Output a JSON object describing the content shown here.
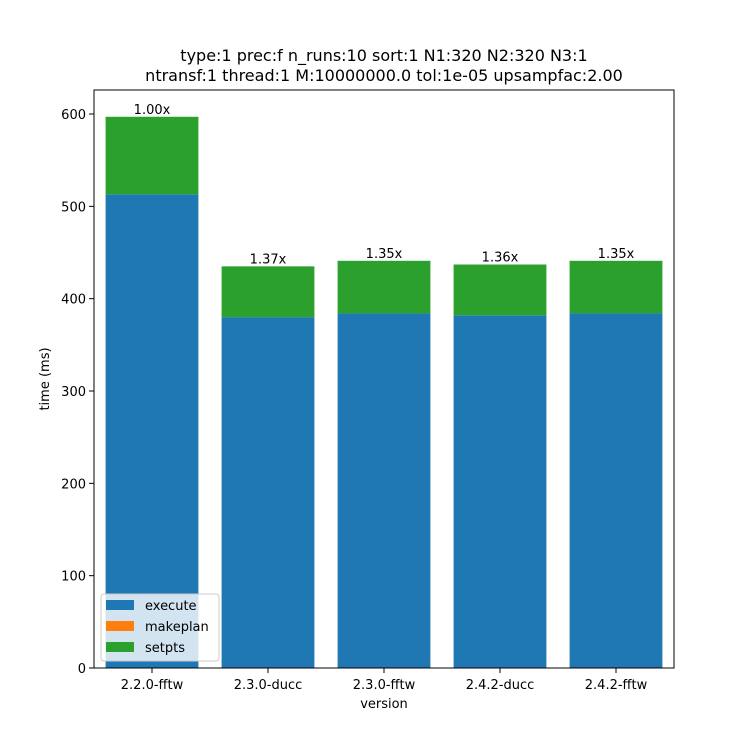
{
  "chart_data": {
    "type": "bar",
    "stacked": true,
    "title_line1": "type:1 prec:f n_runs:10 sort:1 N1:320 N2:320 N3:1",
    "title_line2": "ntransf:1 thread:1 M:10000000.0 tol:1e-05 upsampfac:2.00",
    "xlabel": "version",
    "ylabel": "time (ms)",
    "categories": [
      "2.2.0-fftw",
      "2.3.0-ducc",
      "2.3.0-fftw",
      "2.4.2-ducc",
      "2.4.2-fftw"
    ],
    "ylim": [
      0,
      626
    ],
    "yticks": [
      0,
      100,
      200,
      300,
      400,
      500,
      600
    ],
    "series": [
      {
        "name": "execute",
        "color": "#1f77b4",
        "values": [
          513,
          380,
          384,
          382,
          384
        ]
      },
      {
        "name": "makeplan",
        "color": "#ff7f0e",
        "values": [
          0,
          0,
          0,
          0,
          0
        ]
      },
      {
        "name": "setpts",
        "color": "#2ca02c",
        "values": [
          84,
          55,
          57,
          55,
          57
        ]
      }
    ],
    "bar_labels": [
      "1.00x",
      "1.37x",
      "1.35x",
      "1.36x",
      "1.35x"
    ],
    "legend_position": "lower-left",
    "grid": false
  }
}
